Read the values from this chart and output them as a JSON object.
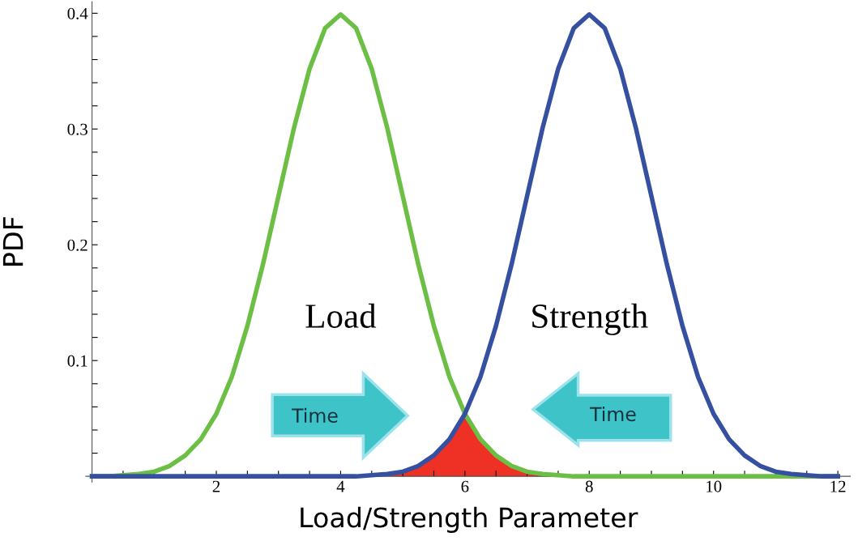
{
  "chart_data": {
    "type": "line",
    "xlabel": "Load/Strength Parameter",
    "ylabel": "PDF",
    "annotations": [
      "Time",
      "Time"
    ],
    "x": [
      0,
      0.25,
      0.5,
      0.75,
      1,
      1.25,
      1.5,
      1.75,
      2,
      2.25,
      2.5,
      2.75,
      3,
      3.25,
      3.5,
      3.75,
      4,
      4.25,
      4.5,
      4.75,
      5,
      5.25,
      5.5,
      5.75,
      6,
      6.25,
      6.5,
      6.75,
      7,
      7.25,
      7.5,
      7.75,
      8,
      8.25,
      8.5,
      8.75,
      9,
      9.25,
      9.5,
      9.75,
      10,
      10.25,
      10.5,
      10.75,
      11,
      11.25,
      11.5,
      11.75,
      12
    ],
    "series": [
      {
        "name": "Load",
        "color": "#6cbf45",
        "values": [
          0.0,
          0.0,
          0.001,
          0.002,
          0.004,
          0.009,
          0.018,
          0.032,
          0.054,
          0.086,
          0.13,
          0.183,
          0.242,
          0.301,
          0.352,
          0.387,
          0.399,
          0.387,
          0.352,
          0.301,
          0.242,
          0.183,
          0.13,
          0.086,
          0.054,
          0.032,
          0.018,
          0.009,
          0.004,
          0.002,
          0.001,
          0.0,
          0.0,
          0.0,
          0.0,
          0.0,
          0.0,
          0.0,
          0.0,
          0.0,
          0.0,
          0.0,
          0.0,
          0.0,
          0.0,
          0.0,
          0.0,
          0.0,
          0.0
        ]
      },
      {
        "name": "Strength",
        "color": "#3550a0",
        "values": [
          0.0,
          0.0,
          0.0,
          0.0,
          0.0,
          0.0,
          0.0,
          0.0,
          0.0,
          0.0,
          0.0,
          0.0,
          0.0,
          0.0,
          0.0,
          0.0,
          0.0,
          0.0,
          0.001,
          0.002,
          0.004,
          0.009,
          0.018,
          0.032,
          0.054,
          0.086,
          0.13,
          0.183,
          0.242,
          0.301,
          0.352,
          0.387,
          0.399,
          0.387,
          0.352,
          0.301,
          0.242,
          0.183,
          0.13,
          0.086,
          0.054,
          0.032,
          0.018,
          0.009,
          0.004,
          0.002,
          0.001,
          0.0,
          0.0
        ]
      },
      {
        "type": "area",
        "color": "#ee3124",
        "x": [
          4,
          4.25,
          4.5,
          4.75,
          5,
          5.25,
          5.5,
          5.75,
          6,
          6.25,
          6.5,
          6.75,
          7,
          7.25,
          7.5,
          7.75,
          8
        ],
        "values": [
          0.0,
          0.0,
          0.001,
          0.002,
          0.004,
          0.009,
          0.018,
          0.032,
          0.054,
          0.032,
          0.018,
          0.009,
          0.004,
          0.002,
          0.001,
          0.0,
          0.0
        ]
      }
    ],
    "xlim": [
      -0.1,
      12.2
    ],
    "ylim": [
      -0.005,
      0.41
    ],
    "xticks": [
      {
        "value": 0.5,
        "label": null
      },
      {
        "value": 1,
        "label": null
      },
      {
        "value": 1.5,
        "label": null
      },
      2,
      {
        "value": 2.5,
        "label": null
      },
      {
        "value": 3,
        "label": null
      },
      {
        "value": 3.5,
        "label": null
      },
      4,
      {
        "value": 4.5,
        "label": null
      },
      {
        "value": 5,
        "label": null
      },
      {
        "value": 5.5,
        "label": null
      },
      6,
      {
        "value": 6.5,
        "label": null
      },
      {
        "value": 7,
        "label": null
      },
      {
        "value": 7.5,
        "label": null
      },
      8,
      {
        "value": 8.5,
        "label": null
      },
      {
        "value": 9,
        "label": null
      },
      {
        "value": 9.5,
        "label": null
      },
      10,
      {
        "value": 10.5,
        "label": null
      },
      {
        "value": 11,
        "label": null
      },
      {
        "value": 11.5,
        "label": null
      },
      12
    ],
    "yticks": [
      {
        "value": 0.02,
        "label": null
      },
      {
        "value": 0.04,
        "label": null
      },
      {
        "value": 0.06,
        "label": null
      },
      {
        "value": 0.08,
        "label": null
      },
      0.1,
      {
        "value": 0.12,
        "label": null
      },
      {
        "value": 0.14,
        "label": null
      },
      {
        "value": 0.16,
        "label": null
      },
      {
        "value": 0.18,
        "label": null
      },
      0.2,
      {
        "value": 0.22,
        "label": null
      },
      {
        "value": 0.24,
        "label": null
      },
      {
        "value": 0.26,
        "label": null
      },
      {
        "value": 0.28,
        "label": null
      },
      0.3,
      {
        "value": 0.32,
        "label": null
      },
      {
        "value": 0.34,
        "label": null
      },
      {
        "value": 0.36,
        "label": null
      },
      {
        "value": 0.38,
        "label": null
      },
      0.4
    ],
    "grid": false,
    "legend": false,
    "marker": "none",
    "line_style": "solid"
  }
}
